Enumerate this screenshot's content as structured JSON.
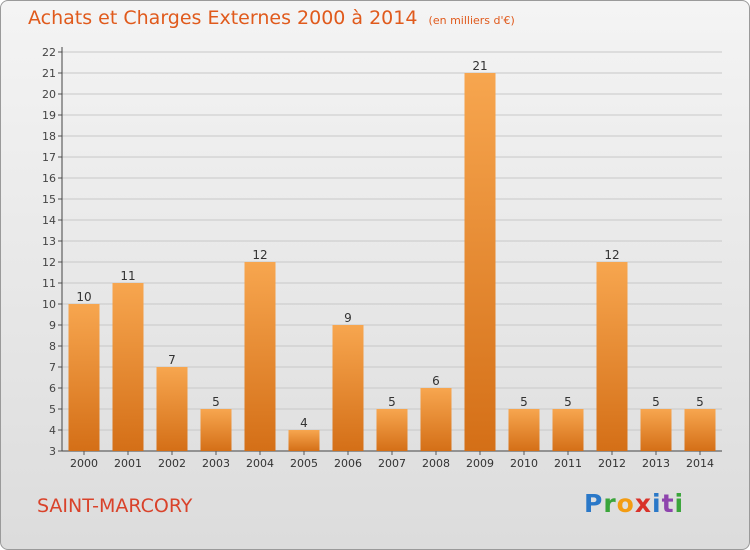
{
  "header": {
    "title": "Achats et Charges Externes 2000 à 2014",
    "unit": "(en milliers d'€)"
  },
  "footer": {
    "commune": "SAINT-MARCORY",
    "logo": "Proxiti"
  },
  "colors": {
    "bar_light": "#f7a64f",
    "bar_dark": "#d46f17",
    "title": "#e05a1c",
    "commune": "#d9422a",
    "grid": "#c8c8c8"
  },
  "chart_data": {
    "type": "bar",
    "title": "Achats et Charges Externes 2000 à 2014",
    "subtitle": "(en milliers d'€)",
    "categories": [
      "2000",
      "2001",
      "2002",
      "2003",
      "2004",
      "2005",
      "2006",
      "2007",
      "2008",
      "2009",
      "2010",
      "2011",
      "2012",
      "2013",
      "2014"
    ],
    "values": [
      10,
      11,
      7,
      5,
      12,
      4,
      9,
      5,
      6,
      21,
      5,
      5,
      12,
      5,
      5
    ],
    "ylim": [
      3,
      22
    ],
    "yticks": [
      3,
      4,
      5,
      6,
      7,
      8,
      9,
      10,
      11,
      12,
      13,
      14,
      15,
      16,
      17,
      18,
      19,
      20,
      21,
      22
    ],
    "grid": true,
    "data_labels": true
  }
}
